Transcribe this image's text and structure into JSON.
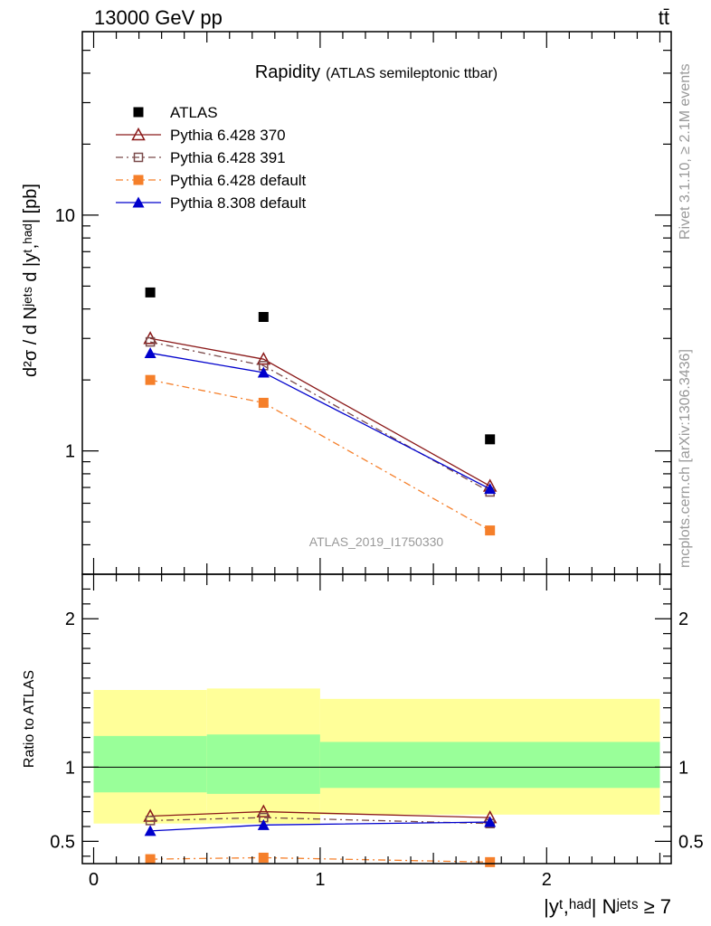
{
  "header": {
    "energy_label": "13000 GeV pp",
    "process_label": "tt̄"
  },
  "side_labels": {
    "rivet": "Rivet 3.1.10, ≥ 2.1M events",
    "source": "mcplots.cern.ch [arXiv:1306.3436]"
  },
  "chart_data": [
    {
      "type": "line",
      "panel": "main",
      "title_main": "Rapidity",
      "title_sub": "(ATLAS semileptonic ttbar)",
      "watermark": "ATLAS_2019_I1750330",
      "ylabel": "d²σ / d Nʲᵉᵗˢ d |yᵗ,ʰᵃᵈ| [pb]",
      "y_scale": "log",
      "ylim": [
        0.3,
        60
      ],
      "xlim": [
        -0.05,
        2.55
      ],
      "y_ticks": [
        {
          "value": 1,
          "label": "1"
        },
        {
          "value": 10,
          "label": "10"
        }
      ],
      "legend_position": "top-left",
      "x_bins": [
        [
          0,
          0.5
        ],
        [
          0.5,
          1.0
        ],
        [
          1.0,
          2.5
        ]
      ],
      "x": [
        0.25,
        0.75,
        1.75
      ],
      "series": [
        {
          "name": "ATLAS",
          "color": "#000000",
          "marker": "square-filled",
          "line": "none",
          "values": [
            4.7,
            3.7,
            1.12
          ]
        },
        {
          "name": "Pythia 6.428 370",
          "color": "#8b1a1a",
          "marker": "triangle-open",
          "line": "solid",
          "values": [
            3.0,
            2.45,
            0.71
          ]
        },
        {
          "name": "Pythia 6.428 391",
          "color": "#7a4a4a",
          "marker": "square-open",
          "line": "dashdot",
          "values": [
            2.9,
            2.3,
            0.67
          ]
        },
        {
          "name": "Pythia 6.428 default",
          "color": "#f57f2a",
          "marker": "square-filled",
          "line": "dashdot",
          "values": [
            2.0,
            1.6,
            0.46
          ]
        },
        {
          "name": "Pythia 8.308 default",
          "color": "#0000cc",
          "marker": "triangle-filled",
          "line": "solid",
          "values": [
            2.6,
            2.15,
            0.69
          ]
        }
      ]
    },
    {
      "type": "line",
      "panel": "ratio",
      "ylabel": "Ratio to ATLAS",
      "xlabel": "|yᵗ,ʰᵃᵈ| Nʲᵉᵗˢ ≥ 7",
      "ylim": [
        0.35,
        2.3
      ],
      "xlim": [
        -0.05,
        2.55
      ],
      "y_ticks": [
        {
          "value": 0.5,
          "label": "0.5"
        },
        {
          "value": 1,
          "label": "1"
        },
        {
          "value": 2,
          "label": "2"
        }
      ],
      "x_ticks": [
        {
          "value": 0,
          "label": "0"
        },
        {
          "value": 1,
          "label": "1"
        },
        {
          "value": 2,
          "label": "2"
        }
      ],
      "bands": {
        "outer_color": "#ffff99",
        "inner_color": "#99ff99",
        "bins": [
          {
            "x": [
              0,
              0.5
            ],
            "outer": [
              0.62,
              1.52
            ],
            "inner": [
              0.83,
              1.21
            ]
          },
          {
            "x": [
              0.5,
              1.0
            ],
            "outer": [
              0.62,
              1.53
            ],
            "inner": [
              0.82,
              1.22
            ]
          },
          {
            "x": [
              1.0,
              2.5
            ],
            "outer": [
              0.68,
              1.46
            ],
            "inner": [
              0.86,
              1.17
            ]
          }
        ]
      },
      "x": [
        0.25,
        0.75,
        1.75
      ],
      "series": [
        {
          "name": "Pythia 6.428 370",
          "color": "#8b1a1a",
          "marker": "triangle-open",
          "line": "solid",
          "values": [
            0.67,
            0.7,
            0.66
          ]
        },
        {
          "name": "Pythia 6.428 391",
          "color": "#7a4a4a",
          "marker": "square-open",
          "line": "dashdot",
          "values": [
            0.64,
            0.66,
            0.62
          ]
        },
        {
          "name": "Pythia 6.428 default",
          "color": "#f57f2a",
          "marker": "square-filled",
          "line": "dashdot",
          "values": [
            0.38,
            0.39,
            0.36
          ]
        },
        {
          "name": "Pythia 8.308 default",
          "color": "#0000cc",
          "marker": "triangle-filled",
          "line": "solid",
          "values": [
            0.57,
            0.61,
            0.63
          ]
        }
      ]
    }
  ]
}
